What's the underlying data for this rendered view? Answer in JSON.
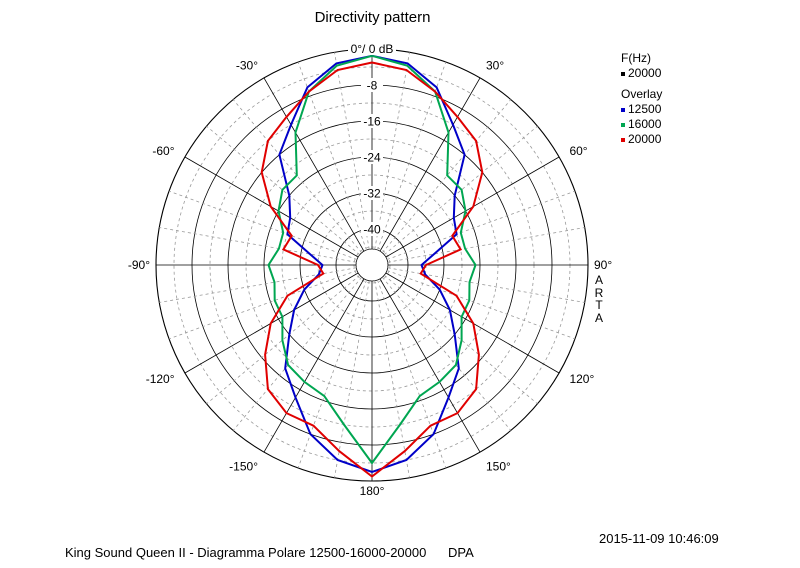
{
  "chart_data": {
    "type": "polar-line",
    "title": "Directivity pattern",
    "radial_label": "0°/ 0 dB",
    "radial_ticks": [
      "-8",
      "-16",
      "-24",
      "-32",
      "-40"
    ],
    "radial_tick_values": [
      -8,
      -16,
      -24,
      -32,
      -40
    ],
    "radial_range_db": [
      -48,
      0
    ],
    "angle_labels": [
      "0°/ 0 dB",
      "30°",
      "60°",
      "90°",
      "120°",
      "150°",
      "180°",
      "-150°",
      "-120°",
      "-90°",
      "-60°",
      "-30°"
    ],
    "angles_deg": [
      0,
      10,
      20,
      30,
      40,
      50,
      60,
      70,
      80,
      90,
      100,
      110,
      120,
      130,
      140,
      150,
      160,
      170,
      180
    ],
    "legend": {
      "header": "F(Hz)",
      "main": {
        "label": "20000",
        "color": "#000000"
      },
      "overlay_header": "Overlay",
      "items": [
        {
          "label": "12500",
          "color": "#0000c8"
        },
        {
          "label": "16000",
          "color": "#00a651"
        },
        {
          "label": "20000",
          "color": "#e00000"
        }
      ]
    },
    "series": [
      {
        "name": "12500",
        "color": "#0000c8",
        "db": [
          -1.5,
          -2.5,
          -6,
          -12,
          -16,
          -24,
          -27,
          -28,
          -34,
          -37,
          -36,
          -32,
          -28,
          -24,
          -18,
          -14,
          -8,
          -4,
          -2
        ]
      },
      {
        "name": "16000",
        "color": "#00a651",
        "db": [
          -1.5,
          -3,
          -7,
          -14,
          -22,
          -22,
          -24,
          -27,
          -27,
          -25,
          -26,
          -25,
          -25,
          -22,
          -19,
          -18,
          -17,
          -12,
          -4
        ]
      },
      {
        "name": "20000",
        "color": "#e00000",
        "db": [
          -3,
          -4,
          -7,
          -10,
          -12,
          -16,
          -22,
          -29,
          -28,
          -36,
          -37,
          -28,
          -22,
          -17,
          -12,
          -10,
          -10,
          -6,
          -1
        ]
      }
    ],
    "grid": true,
    "legend_position": "right",
    "side_label": "ARTA"
  },
  "footer": {
    "timestamp": "2015-11-09  10:46:09",
    "caption": "King Sound Queen II - Diagramma Polare 12500-16000-20000      DPA"
  }
}
